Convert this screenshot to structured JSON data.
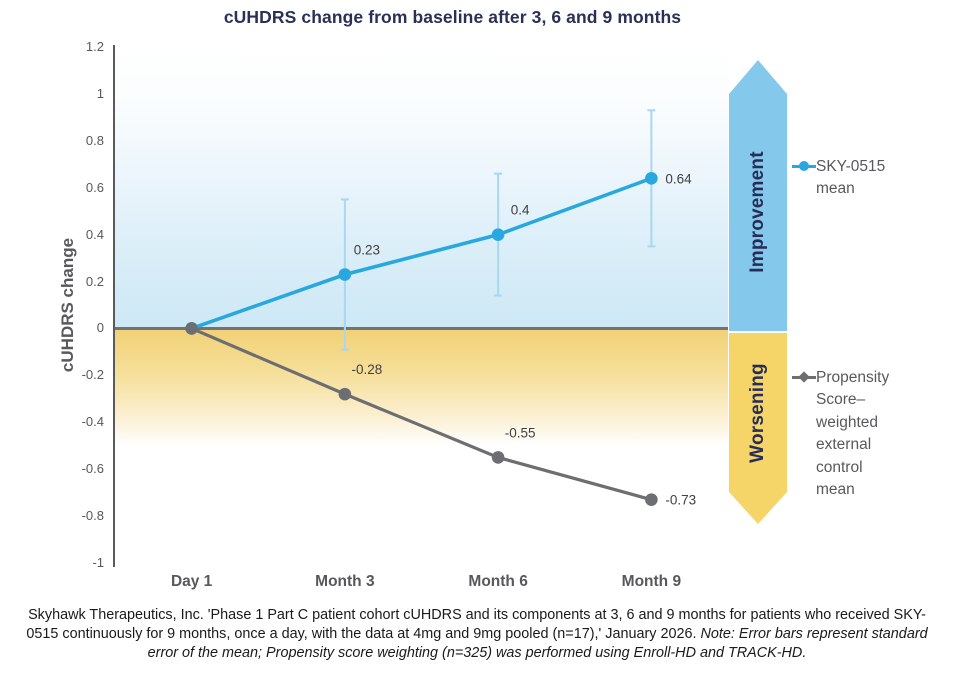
{
  "title": "cUHDRS change from baseline after 3, 6 and 9 months",
  "colors": {
    "title_navy": "#2B3057",
    "sky_blue_line": "#29A8DF",
    "error_bar_blue": "#A6D8F1",
    "control_gray_line": "#6D6E71",
    "improvement_arrow_blue": "#84C8EC",
    "worsening_arrow_yellow": "#F5D468",
    "axis_gray": "#58595B",
    "data_label_gray": "#414042",
    "blue_region_bottom": "#CDE8F5",
    "yellow_region_top": "#F2D176"
  },
  "chart_data": {
    "type": "line",
    "title": "cUHDRS change from baseline after 3, 6 and 9 months",
    "categories": [
      "Day 1",
      "Month 3",
      "Month 6",
      "Month 9"
    ],
    "series": [
      {
        "name": "SKY-0515 mean",
        "color": "#29A8DF",
        "values": [
          0,
          0.23,
          0.4,
          0.64
        ],
        "error": [
          null,
          0.32,
          0.26,
          0.29
        ],
        "labels": [
          "",
          "0.23",
          "0.4",
          "0.64"
        ],
        "label_placement": [
          "none",
          "above",
          "above",
          "right"
        ],
        "line_width": 3.6,
        "marker": "circle"
      },
      {
        "name": "Propensity Score–weighted external control mean",
        "color": "#6D6E71",
        "values": [
          0,
          -0.28,
          -0.55,
          -0.73
        ],
        "error": [
          null,
          null,
          null,
          null
        ],
        "labels": [
          "",
          "-0.28",
          "-0.55",
          "-0.73"
        ],
        "label_placement": [
          "none",
          "above",
          "above",
          "right"
        ],
        "line_width": 3.2,
        "marker": "circle"
      }
    ],
    "xlabel": "",
    "ylabel": "cUHDRS change",
    "ylim": [
      -1,
      1.2
    ],
    "yticks": [
      "1.2",
      "1",
      "0.8",
      "0.6",
      "0.4",
      "0.2",
      "0",
      "-0.2",
      "-0.4",
      "-0.6",
      "-0.8",
      "-1"
    ],
    "ytick_values": [
      1.2,
      1,
      0.8,
      0.6,
      0.4,
      0.2,
      0,
      -0.2,
      -0.4,
      -0.6,
      -0.8,
      -1
    ],
    "grid": false,
    "legend_position": "right",
    "annotations": {
      "improvement": "Improvement",
      "worsening": "Worsening"
    }
  },
  "legend": {
    "sky_label": "SKY-0515\nmean",
    "control_label": "Propensity\nScore–\nweighted\nexternal\ncontrol\nmean"
  },
  "caption": {
    "normal": "Skyhawk Therapeutics, Inc. 'Phase 1 Part C patient cohort cUHDRS and its components at 3, 6 and 9 months for patients who received SKY-0515 continuously for 9 months, once a day, with the data at 4mg and 9mg pooled (n=17),' January 2026. ",
    "italic": "Note: Error bars represent standard error of the mean; Propensity score weighting (n=325) was performed using Enroll-HD and TRACK-HD."
  }
}
